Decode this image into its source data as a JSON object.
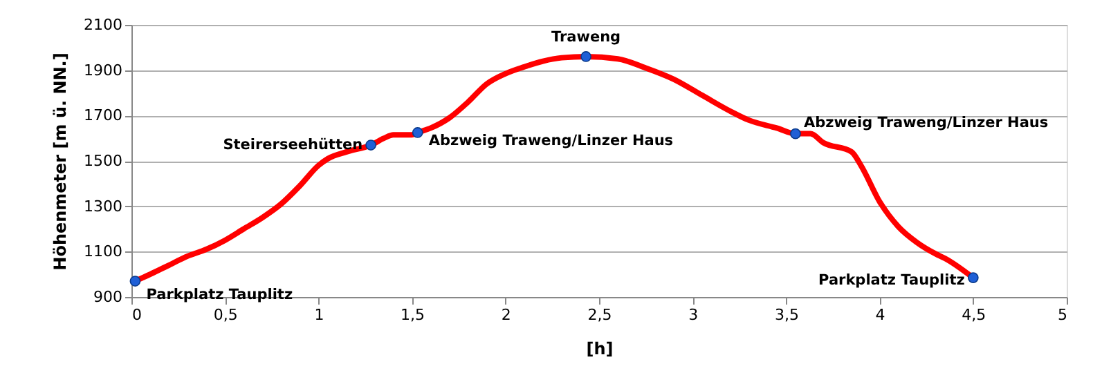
{
  "chart_data": {
    "type": "line",
    "xlabel": "[h]",
    "ylabel": "Höhenmeter [m ü. NN.]",
    "series": [
      {
        "color": "#ff0000",
        "x": [
          0.02,
          0.1,
          0.2,
          0.3,
          0.4,
          0.5,
          0.6,
          0.7,
          0.8,
          0.9,
          1.0,
          1.05,
          1.15,
          1.28,
          1.35,
          1.4,
          1.5,
          1.53,
          1.6,
          1.7,
          1.8,
          1.9,
          2.0,
          2.1,
          2.2,
          2.3,
          2.43,
          2.6,
          2.75,
          2.9,
          3.05,
          3.2,
          3.3,
          3.45,
          3.55,
          3.63,
          3.7,
          3.85,
          3.9,
          4.0,
          4.1,
          4.2,
          4.3,
          4.35,
          4.5
        ],
        "values": [
          970,
          1000,
          1040,
          1080,
          1110,
          1150,
          1200,
          1250,
          1310,
          1390,
          1480,
          1510,
          1540,
          1570,
          1600,
          1615,
          1615,
          1625,
          1645,
          1690,
          1760,
          1840,
          1885,
          1915,
          1940,
          1955,
          1960,
          1950,
          1910,
          1860,
          1790,
          1720,
          1680,
          1645,
          1620,
          1620,
          1580,
          1540,
          1480,
          1320,
          1210,
          1140,
          1090,
          1070,
          985
        ]
      },
      {
        "type": "scatter",
        "marker": "circle",
        "color": "#1f5fd6",
        "x": [
          0.02,
          1.28,
          1.53,
          2.43,
          3.55,
          4.5
        ],
        "values": [
          970,
          1570,
          1625,
          1960,
          1620,
          985
        ]
      }
    ],
    "annotations": [
      {
        "text": "Parkplatz Tauplitz",
        "x": 0.02,
        "y": 970
      },
      {
        "text": "Steirerseehütten",
        "x": 1.28,
        "y": 1570
      },
      {
        "text": "Abzweig Traweng/Linzer Haus",
        "x": 1.53,
        "y": 1625
      },
      {
        "text": "Traweng",
        "x": 2.43,
        "y": 1960
      },
      {
        "text": "Abzweig Traweng/Linzer Haus",
        "x": 3.55,
        "y": 1620
      },
      {
        "text": "Parkplatz Tauplitz",
        "x": 4.5,
        "y": 985
      }
    ],
    "xlim": [
      0,
      5
    ],
    "xticks": [
      0,
      {
        "value": 0.5,
        "label": "0,5"
      },
      1,
      {
        "value": 1.5,
        "label": "1,5"
      },
      2,
      {
        "value": 2.5,
        "label": "2,5"
      },
      3,
      {
        "value": 3.5,
        "label": "3,5"
      },
      4,
      {
        "value": 4.5,
        "label": "4,5"
      },
      5
    ],
    "ylim": [
      900,
      2100
    ],
    "yticks": [
      900,
      1100,
      1300,
      1500,
      1700,
      1900,
      2100
    ],
    "grid": "y",
    "line_style": "solid"
  }
}
